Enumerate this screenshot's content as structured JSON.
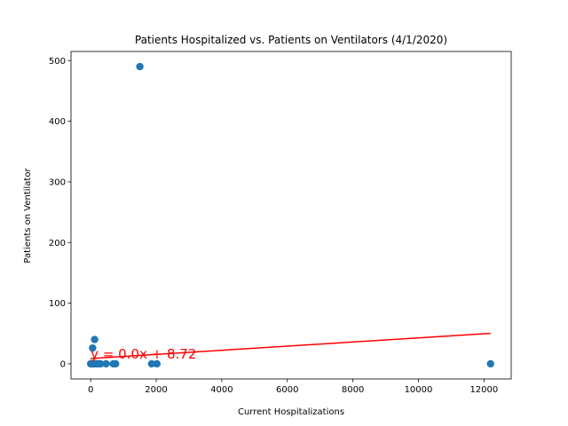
{
  "chart_data": {
    "type": "scatter",
    "title": "Patients Hospitalized vs. Patients on Ventilators (4/1/2020)",
    "xlabel": "Current Hospitalizations",
    "ylabel": "Patients on Ventilator",
    "xlim": [
      -600,
      12830
    ],
    "ylim": [
      -25,
      515
    ],
    "xticks": [
      0,
      2000,
      4000,
      6000,
      8000,
      10000,
      12000
    ],
    "yticks": [
      0,
      100,
      200,
      300,
      400,
      500
    ],
    "grid": false,
    "point_color": "#1f77b4",
    "line_color": "#ff0000",
    "points": [
      {
        "x": 0,
        "y": 0
      },
      {
        "x": 10,
        "y": 0
      },
      {
        "x": 20,
        "y": 0
      },
      {
        "x": 30,
        "y": 0
      },
      {
        "x": 50,
        "y": 0
      },
      {
        "x": 70,
        "y": 0
      },
      {
        "x": 90,
        "y": 0
      },
      {
        "x": 110,
        "y": 0
      },
      {
        "x": 150,
        "y": 0
      },
      {
        "x": 170,
        "y": 0
      },
      {
        "x": 200,
        "y": 0
      },
      {
        "x": 230,
        "y": 0
      },
      {
        "x": 260,
        "y": 0
      },
      {
        "x": 300,
        "y": 0
      },
      {
        "x": 470,
        "y": 0
      },
      {
        "x": 690,
        "y": 0
      },
      {
        "x": 760,
        "y": 0
      },
      {
        "x": 1860,
        "y": 0
      },
      {
        "x": 2020,
        "y": 0
      },
      {
        "x": 12200,
        "y": 0
      },
      {
        "x": 60,
        "y": 26
      },
      {
        "x": 120,
        "y": 40
      },
      {
        "x": 1500,
        "y": 490
      }
    ],
    "regression": {
      "slope": 0.0034,
      "intercept": 8.72,
      "x_range": [
        0,
        12200
      ],
      "label": "y = 0.0x + 8.72",
      "label_anchor": {
        "x": 0,
        "y": 8.72
      }
    }
  }
}
